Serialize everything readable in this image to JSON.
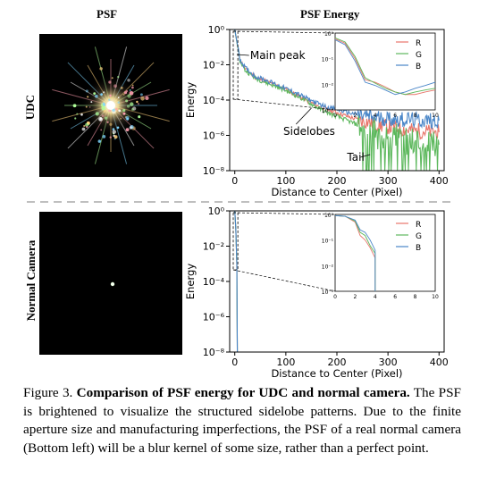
{
  "headers": {
    "left": "PSF",
    "right": "PSF Energy"
  },
  "rows": {
    "top": "UDC",
    "bottom": "Normal Camera"
  },
  "axes": {
    "xlabel": "Distance to Center (Pixel)",
    "ylabel": "Energy",
    "xticks": [
      "0",
      "100",
      "200",
      "300",
      "400"
    ],
    "yticks": [
      "10⁰",
      "10⁻²",
      "10⁻⁴",
      "10⁻⁶",
      "10⁻⁸"
    ],
    "inset_xticks": [
      "0",
      "2",
      "4",
      "6",
      "8",
      "10"
    ],
    "inset_yticks": [
      "10⁰",
      "10⁻¹",
      "10⁻²",
      "10⁻³"
    ]
  },
  "legend": [
    "R",
    "G",
    "B"
  ],
  "colors": {
    "R": "#e8756a",
    "G": "#5cb85c",
    "B": "#4a86c8",
    "divider": "#aaaaaa"
  },
  "annotations": {
    "main_peak": "Main peak",
    "sidelobes": "Sidelobes",
    "tail": "Tail"
  },
  "caption": {
    "label": "Figure 3.",
    "bold": "Comparison of PSF energy for UDC and normal camera.",
    "text": "The PSF is brightened to visualize the structured sidelobe patterns. Due to the finite aperture size and manufacturing imperfections, the PSF of a real normal camera (Bottom left) will be a blur kernel of some size, rather than a perfect point."
  },
  "chart_data": [
    {
      "type": "line",
      "panel": "UDC",
      "xlabel": "Distance to Center (Pixel)",
      "ylabel": "Energy",
      "xlim": [
        -10,
        410
      ],
      "ylim_log10": [
        -8,
        0
      ],
      "yscale": "log",
      "series": [
        {
          "name": "R",
          "x": [
            0,
            10,
            20,
            40,
            60,
            80,
            100,
            120,
            140,
            160,
            180,
            200,
            220,
            240,
            260,
            280,
            300,
            320,
            340,
            360,
            380,
            400
          ],
          "y": [
            1,
            0.02,
            0.006,
            0.002,
            0.0012,
            0.0007,
            0.0004,
            0.0002,
            0.0001,
            5e-05,
            3e-05,
            2e-05,
            1.2e-05,
            8e-06,
            6e-06,
            4e-06,
            3e-06,
            2.5e-06,
            2e-06,
            1.8e-06,
            1.6e-06,
            1.5e-06
          ]
        },
        {
          "name": "G",
          "x": [
            0,
            10,
            20,
            40,
            60,
            80,
            100,
            120,
            140,
            160,
            180,
            200,
            220,
            240,
            260,
            280,
            300,
            320,
            340,
            360,
            380,
            400
          ],
          "y": [
            1,
            0.018,
            0.005,
            0.0018,
            0.001,
            0.0006,
            0.00035,
            0.00018,
            9e-05,
            4e-05,
            2e-05,
            1.2e-05,
            7e-06,
            4e-06,
            2e-06,
            1.2e-06,
            8e-07,
            6e-07,
            5e-07,
            4e-07,
            4e-07,
            3e-07
          ]
        },
        {
          "name": "B",
          "x": [
            0,
            10,
            20,
            40,
            60,
            80,
            100,
            120,
            140,
            160,
            180,
            200,
            220,
            240,
            260,
            280,
            300,
            320,
            340,
            360,
            380,
            400
          ],
          "y": [
            1,
            0.022,
            0.007,
            0.0022,
            0.0014,
            0.0008,
            0.00045,
            0.00025,
            0.00013,
            7e-05,
            4e-05,
            3e-05,
            2e-05,
            1.5e-05,
            1.2e-05,
            1e-05,
            9e-06,
            8e-06,
            8e-06,
            7e-06,
            7e-06,
            7e-06
          ]
        }
      ],
      "inset": {
        "xlim": [
          0,
          10
        ],
        "ylim_log10": [
          -3,
          0
        ],
        "series": [
          {
            "name": "R",
            "x": [
              0,
              1,
              2,
              3,
              4,
              5,
              6,
              7,
              8,
              9,
              10
            ],
            "y": [
              0.6,
              0.4,
              0.1,
              0.015,
              0.012,
              0.008,
              0.005,
              0.004,
              0.004,
              0.005,
              0.006
            ]
          },
          {
            "name": "G",
            "x": [
              0,
              1,
              2,
              3,
              4,
              5,
              6,
              7,
              8,
              9,
              10
            ],
            "y": [
              0.65,
              0.45,
              0.12,
              0.018,
              0.011,
              0.007,
              0.005,
              0.004,
              0.005,
              0.006,
              0.007
            ]
          },
          {
            "name": "B",
            "x": [
              0,
              1,
              2,
              3,
              4,
              5,
              6,
              7,
              8,
              9,
              10
            ],
            "y": [
              0.55,
              0.35,
              0.08,
              0.012,
              0.009,
              0.006,
              0.004,
              0.005,
              0.007,
              0.009,
              0.012
            ]
          }
        ]
      }
    },
    {
      "type": "line",
      "panel": "Normal Camera",
      "xlabel": "Distance to Center (Pixel)",
      "ylabel": "Energy",
      "xlim": [
        -10,
        410
      ],
      "ylim_log10": [
        -8,
        0
      ],
      "yscale": "log",
      "series": [
        {
          "name": "R",
          "x": [
            0,
            2,
            4,
            5
          ],
          "y": [
            1,
            0.1,
            0.001,
            1e-08
          ]
        },
        {
          "name": "G",
          "x": [
            0,
            2,
            4,
            5
          ],
          "y": [
            1,
            0.1,
            0.001,
            1e-08
          ]
        },
        {
          "name": "B",
          "x": [
            0,
            2,
            4,
            5
          ],
          "y": [
            1,
            0.1,
            0.001,
            1e-08
          ]
        }
      ],
      "inset": {
        "xlim": [
          0,
          10
        ],
        "ylim_log10": [
          -3,
          0
        ],
        "series": [
          {
            "name": "R",
            "x": [
              0,
              1,
              2,
              2.5,
              3,
              3.5,
              4,
              4
            ],
            "y": [
              0.9,
              0.85,
              0.5,
              0.15,
              0.1,
              0.05,
              0.02,
              0.001
            ]
          },
          {
            "name": "G",
            "x": [
              0,
              1,
              2,
              2.5,
              3,
              3.5,
              4,
              4
            ],
            "y": [
              0.9,
              0.85,
              0.55,
              0.2,
              0.15,
              0.06,
              0.03,
              0.001
            ]
          },
          {
            "name": "B",
            "x": [
              0,
              1,
              2,
              2.5,
              3,
              3.5,
              4,
              4
            ],
            "y": [
              0.9,
              0.85,
              0.6,
              0.25,
              0.2,
              0.1,
              0.04,
              0.001
            ]
          }
        ]
      }
    }
  ]
}
